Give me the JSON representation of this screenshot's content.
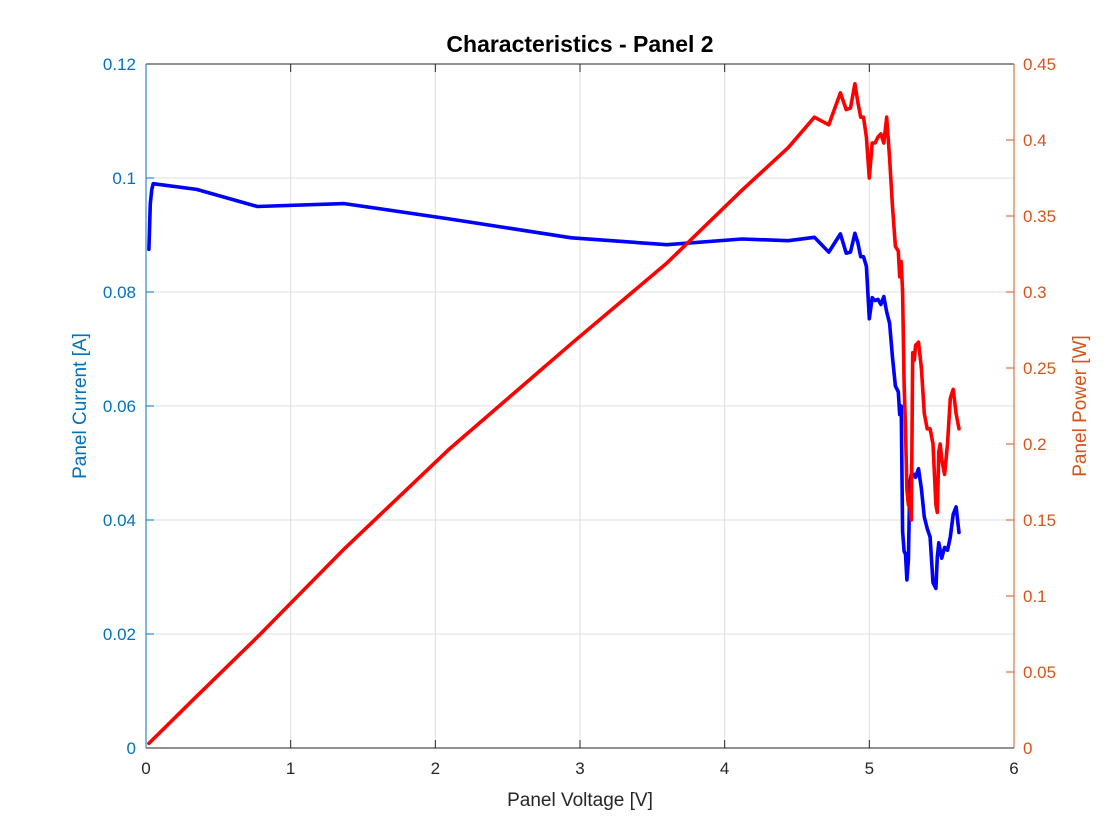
{
  "chart_data": {
    "type": "line",
    "title": "Characteristics - Panel 2",
    "xlabel": "Panel Voltage [V]",
    "ylabel_left": "Panel Current [A]",
    "ylabel_right": "Panel Power [W]",
    "xlim": [
      0,
      6
    ],
    "ylim_left": [
      0,
      0.12
    ],
    "ylim_right": [
      0,
      0.45
    ],
    "xticks": [
      "0",
      "1",
      "2",
      "3",
      "4",
      "5",
      "6"
    ],
    "yticks_left": [
      "0",
      "0.02",
      "0.04",
      "0.06",
      "0.08",
      "0.1",
      "0.12"
    ],
    "yticks_right": [
      "0",
      "0.05",
      "0.1",
      "0.15",
      "0.2",
      "0.25",
      "0.3",
      "0.35",
      "0.4",
      "0.45"
    ],
    "grid": true,
    "axis_colors": {
      "left": "#0072BD",
      "right": "#D95319",
      "x": "#262626"
    },
    "series": [
      {
        "axis": "left",
        "color": "#0000FF",
        "x": [
          0.02,
          0.03,
          0.04,
          0.05,
          0.35,
          0.77,
          1.37,
          2.1,
          2.94,
          3.6,
          4.12,
          4.44,
          4.62,
          4.72,
          4.8,
          4.84,
          4.87,
          4.9,
          4.92,
          4.94,
          4.96,
          4.98,
          5.0,
          5.02,
          5.04,
          5.06,
          5.08,
          5.1,
          5.12,
          5.14,
          5.16,
          5.18,
          5.2,
          5.21,
          5.22,
          5.23,
          5.24,
          5.25,
          5.26,
          5.27,
          5.28,
          5.29,
          5.3,
          5.31,
          5.32,
          5.34,
          5.36,
          5.38,
          5.4,
          5.42,
          5.44,
          5.46,
          5.47,
          5.48,
          5.49,
          5.5,
          5.52,
          5.54,
          5.56,
          5.58,
          5.6,
          5.62
        ],
        "y": [
          0.0875,
          0.0955,
          0.098,
          0.099,
          0.098,
          0.095,
          0.0955,
          0.0928,
          0.0895,
          0.0883,
          0.0893,
          0.089,
          0.0896,
          0.087,
          0.0902,
          0.0868,
          0.087,
          0.0903,
          0.0887,
          0.0862,
          0.0862,
          0.0845,
          0.0753,
          0.079,
          0.0785,
          0.0787,
          0.0778,
          0.0792,
          0.0765,
          0.0745,
          0.0685,
          0.0635,
          0.0625,
          0.0585,
          0.06,
          0.038,
          0.0345,
          0.034,
          0.0295,
          0.033,
          0.0465,
          0.048,
          0.0477,
          0.048,
          0.0475,
          0.049,
          0.0455,
          0.0405,
          0.0385,
          0.037,
          0.029,
          0.028,
          0.0335,
          0.036,
          0.0347,
          0.0333,
          0.0352,
          0.0347,
          0.037,
          0.041,
          0.0423,
          0.0378
        ]
      },
      {
        "axis": "right",
        "color": "#FF0000",
        "x": [
          0.02,
          0.35,
          0.77,
          1.37,
          2.1,
          2.94,
          3.6,
          4.12,
          4.44,
          4.62,
          4.72,
          4.8,
          4.84,
          4.87,
          4.9,
          4.92,
          4.94,
          4.96,
          4.98,
          5.0,
          5.02,
          5.04,
          5.06,
          5.08,
          5.1,
          5.12,
          5.14,
          5.16,
          5.18,
          5.2,
          5.21,
          5.22,
          5.23,
          5.24,
          5.25,
          5.26,
          5.27,
          5.28,
          5.29,
          5.3,
          5.31,
          5.32,
          5.34,
          5.36,
          5.38,
          5.4,
          5.42,
          5.44,
          5.46,
          5.47,
          5.48,
          5.49,
          5.5,
          5.52,
          5.54,
          5.56,
          5.58,
          5.6,
          5.62
        ],
        "y": [
          0.003,
          0.034,
          0.073,
          0.131,
          0.197,
          0.266,
          0.319,
          0.367,
          0.395,
          0.415,
          0.41,
          0.431,
          0.42,
          0.421,
          0.437,
          0.425,
          0.415,
          0.415,
          0.402,
          0.375,
          0.398,
          0.398,
          0.402,
          0.404,
          0.398,
          0.415,
          0.388,
          0.356,
          0.33,
          0.327,
          0.31,
          0.32,
          0.3,
          0.24,
          0.21,
          0.17,
          0.16,
          0.16,
          0.15,
          0.26,
          0.255,
          0.265,
          0.267,
          0.25,
          0.22,
          0.21,
          0.21,
          0.2,
          0.16,
          0.155,
          0.195,
          0.2,
          0.19,
          0.18,
          0.2,
          0.23,
          0.236,
          0.22,
          0.21
        ]
      }
    ]
  }
}
